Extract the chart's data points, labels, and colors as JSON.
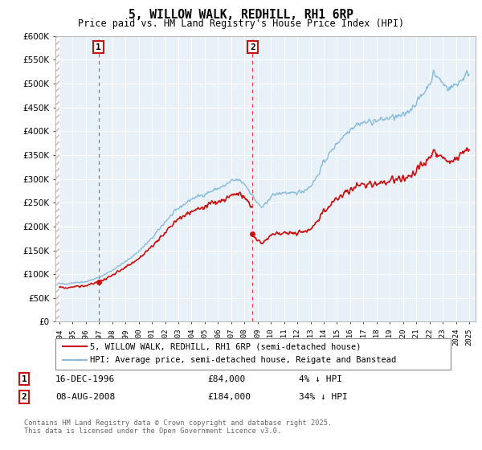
{
  "title": "5, WILLOW WALK, REDHILL, RH1 6RP",
  "subtitle": "Price paid vs. HM Land Registry's House Price Index (HPI)",
  "legend_entry1": "5, WILLOW WALK, REDHILL, RH1 6RP (semi-detached house)",
  "legend_entry2": "HPI: Average price, semi-detached house, Reigate and Banstead",
  "annotation1_date": "16-DEC-1996",
  "annotation1_price": 84000,
  "annotation1_note": "4% ↓ HPI",
  "annotation2_date": "08-AUG-2008",
  "annotation2_price": 184000,
  "annotation2_note": "34% ↓ HPI",
  "footer": "Contains HM Land Registry data © Crown copyright and database right 2025.\nThis data is licensed under the Open Government Licence v3.0.",
  "sale1_year": 1996.96,
  "sale1_price": 84000,
  "sale2_year": 2008.62,
  "sale2_price": 184000,
  "hpi_color": "#88bbdd",
  "price_color": "#cc1111",
  "sale_dot_color": "#cc1111",
  "background_color": "#ffffff",
  "plot_bg_color": "#e8f0f8",
  "grid_color": "#ffffff",
  "ylim": [
    0,
    600000
  ],
  "xlim_start": 1993.7,
  "xlim_end": 2025.5
}
